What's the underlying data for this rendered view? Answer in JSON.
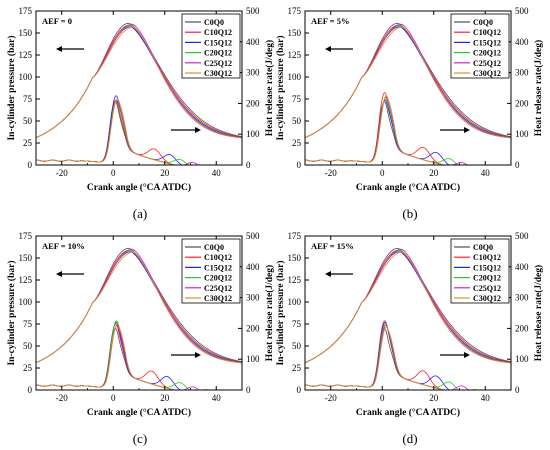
{
  "colors": {
    "C0Q0": "#505050",
    "C10Q12": "#ff2020",
    "C15Q12": "#2020ff",
    "C20Q12": "#20d020",
    "C25Q12": "#d020d0",
    "C30Q12": "#e09020"
  },
  "chart_data": [
    {
      "type": "line",
      "title": "AEF = 0",
      "caption": "(a)",
      "xlabel": "Crank angle (°CA ATDC)",
      "ylabel_left": "In-cylinder pressure (bar)",
      "ylabel_right": "Heat release rate(J/deg)",
      "xlim": [
        -30,
        50
      ],
      "ylim_left": [
        0,
        175
      ],
      "ylim_right": [
        0,
        500
      ],
      "xticks": [
        "-20",
        "0",
        "20",
        "40"
      ],
      "yticks_left": [
        "0",
        "25",
        "50",
        "75",
        "100",
        "125",
        "150",
        "175"
      ],
      "yticks_right": [
        "0",
        "100",
        "200",
        "300",
        "400",
        "500"
      ],
      "legend": [
        "C0Q0",
        "C10Q12",
        "C15Q12",
        "C20Q12",
        "C25Q12",
        "C30Q12"
      ],
      "legend_position": "top-right",
      "pressure_peak_bar": 161,
      "hrr_peak_J_deg": [
        205,
        210,
        225,
        208,
        210,
        215
      ],
      "hrr_second_peak_position_deg": [
        0,
        16,
        22,
        26,
        31,
        35
      ],
      "hrr_second_peak_height_J_deg": [
        0,
        35,
        30,
        22,
        20,
        16
      ]
    },
    {
      "type": "line",
      "title": "AEF = 5%",
      "caption": "(b)",
      "xlabel": "Crank angle (°CA ATDC)",
      "ylabel_left": "In-cylinder pressure (bar)",
      "ylabel_right": "Heat release rate(J/deg)",
      "xlim": [
        -30,
        50
      ],
      "ylim_left": [
        0,
        175
      ],
      "ylim_right": [
        0,
        500
      ],
      "xticks": [
        "-20",
        "0",
        "20",
        "40"
      ],
      "yticks_left": [
        "0",
        "25",
        "50",
        "75",
        "100",
        "125",
        "150",
        "175"
      ],
      "yticks_right": [
        "0",
        "100",
        "200",
        "300",
        "400",
        "500"
      ],
      "legend": [
        "C0Q0",
        "C10Q12",
        "C15Q12",
        "C20Q12",
        "C25Q12",
        "C30Q12"
      ],
      "legend_position": "top-right",
      "pressure_peak_bar": 161,
      "hrr_peak_J_deg": [
        205,
        235,
        210,
        215,
        220,
        225
      ],
      "hrr_second_peak_position_deg": [
        0,
        16,
        21,
        26,
        31,
        36
      ],
      "hrr_second_peak_height_J_deg": [
        0,
        40,
        35,
        25,
        20,
        16
      ]
    },
    {
      "type": "line",
      "title": "AEF = 10%",
      "caption": "(c)",
      "xlabel": "Crank angle (°CA ATDC)",
      "ylabel_left": "In-cylinder pressure (bar)",
      "ylabel_right": "Heat release rate(J/deg)",
      "xlim": [
        -30,
        50
      ],
      "ylim_left": [
        0,
        175
      ],
      "ylim_right": [
        0,
        500
      ],
      "xticks": [
        "-20",
        "0",
        "20",
        "40"
      ],
      "yticks_left": [
        "0",
        "25",
        "50",
        "75",
        "100",
        "125",
        "150",
        "175"
      ],
      "yticks_right": [
        "0",
        "100",
        "200",
        "300",
        "400",
        "500"
      ],
      "legend": [
        "C0Q0",
        "C10Q12",
        "C15Q12",
        "C20Q12",
        "C25Q12",
        "C30Q12"
      ],
      "legend_position": "top-right",
      "pressure_peak_bar": 161,
      "hrr_peak_J_deg": [
        200,
        215,
        220,
        225,
        210,
        215
      ],
      "hrr_second_peak_position_deg": [
        0,
        15,
        21,
        26,
        31,
        36
      ],
      "hrr_second_peak_height_J_deg": [
        0,
        42,
        38,
        28,
        22,
        18
      ]
    },
    {
      "type": "line",
      "title": "AEF = 15%",
      "caption": "(d)",
      "xlabel": "Crank angle (°CA ATDC)",
      "ylabel_left": "In-cylinder pressure (bar)",
      "ylabel_right": "Heat release rate(J/deg)",
      "xlim": [
        -30,
        50
      ],
      "ylim_left": [
        0,
        175
      ],
      "ylim_right": [
        0,
        500
      ],
      "xticks": [
        "-20",
        "0",
        "20",
        "40"
      ],
      "yticks_left": [
        "0",
        "25",
        "50",
        "75",
        "100",
        "125",
        "150",
        "175"
      ],
      "yticks_right": [
        "0",
        "100",
        "200",
        "300",
        "400",
        "500"
      ],
      "legend": [
        "C0Q0",
        "C10Q12",
        "C15Q12",
        "C20Q12",
        "C25Q12",
        "C30Q12"
      ],
      "legend_position": "top-right",
      "pressure_peak_bar": 161,
      "hrr_peak_J_deg": [
        200,
        225,
        220,
        215,
        210,
        205
      ],
      "hrr_second_peak_position_deg": [
        0,
        16,
        21,
        26,
        31,
        36
      ],
      "hrr_second_peak_height_J_deg": [
        0,
        45,
        40,
        30,
        25,
        18
      ]
    }
  ]
}
